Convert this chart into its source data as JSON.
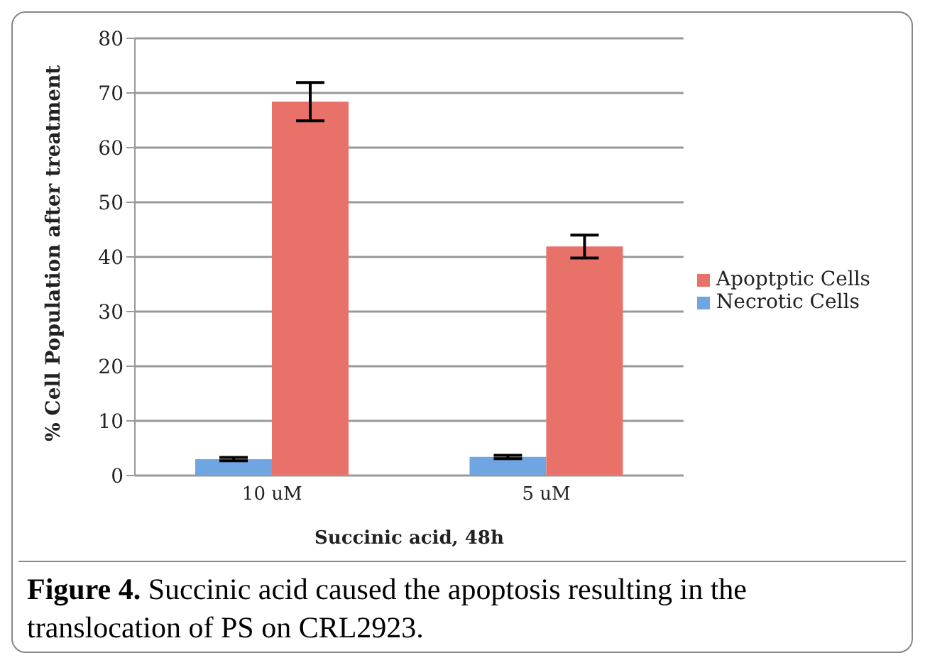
{
  "chart_data": {
    "type": "bar",
    "categories": [
      "10 uM",
      "5 uM"
    ],
    "xlabel": "Succinic acid, 48h",
    "ylabel": "% Cell Population after treatment",
    "series": [
      {
        "name": "Necrotic Cells",
        "color": "#6fa5e0",
        "values": [
          3.0,
          3.4
        ],
        "errors": [
          0.3,
          0.3
        ]
      },
      {
        "name": "Apoptptic Cells",
        "color": "#e8726a",
        "values": [
          68.4,
          41.9
        ],
        "errors": [
          3.5,
          2.1
        ]
      }
    ],
    "ylim": [
      0,
      80
    ],
    "yticks": [
      0,
      10,
      20,
      30,
      40,
      50,
      60,
      70,
      80
    ],
    "grid": "y",
    "legend": "right",
    "annotations": [
      "Figure 4.",
      "Succinic acid caused the apoptosis resulting in the translocation of PS on CRL2923."
    ]
  }
}
